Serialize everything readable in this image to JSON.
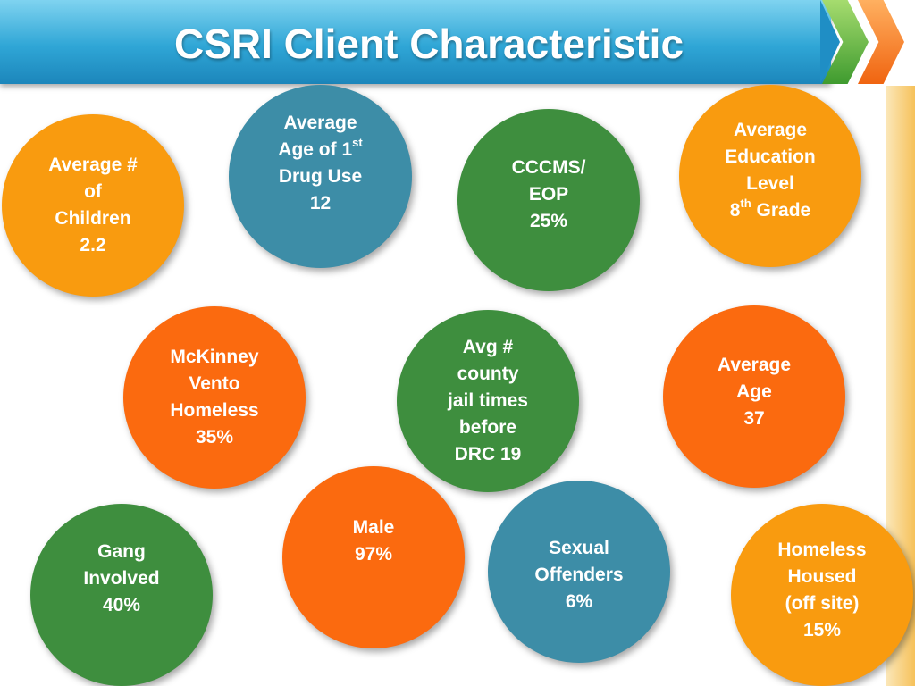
{
  "slide": {
    "title": "CSRI Client Characteristic"
  },
  "colors": {
    "title_bar": "#2fa6d6",
    "orange": "#f99b0f",
    "red_orange": "#fb6a0f",
    "teal_blue": "#3d8da7",
    "green": "#3e8e3e"
  },
  "circles": {
    "children": {
      "l1": "Average #",
      "l2": "of",
      "l3": "Children",
      "l4": "2.2"
    },
    "drug_age": {
      "l1": "Average",
      "l2": "Age of 1",
      "l2_sup": "st",
      "l3": "Drug Use",
      "l4": "12"
    },
    "cccms": {
      "l1": "CCCMS/",
      "l2": "EOP",
      "l3": "25%"
    },
    "education": {
      "l1": "Average",
      "l2": "Education",
      "l3": "Level",
      "l4a": "8",
      "l4_sup": "th",
      "l4b": " Grade"
    },
    "mckinney": {
      "l1": "McKinney",
      "l2": "Vento",
      "l3": "Homeless",
      "l4": "35%"
    },
    "jail": {
      "l1": "Avg #",
      "l2": "county",
      "l3": "jail times",
      "l4": "before",
      "l5": "DRC 19"
    },
    "age": {
      "l1": "Average",
      "l2": "Age",
      "l3": "37"
    },
    "male": {
      "l1": "Male",
      "l2": "97%"
    },
    "sexual": {
      "l1": "Sexual",
      "l2": "Offenders",
      "l3": "6%"
    },
    "gang": {
      "l1": "Gang",
      "l2": "Involved",
      "l3": "40%"
    },
    "homeless_housed": {
      "l1": "Homeless",
      "l2": "Housed",
      "l3": "(off site)",
      "l4": "15%"
    }
  }
}
